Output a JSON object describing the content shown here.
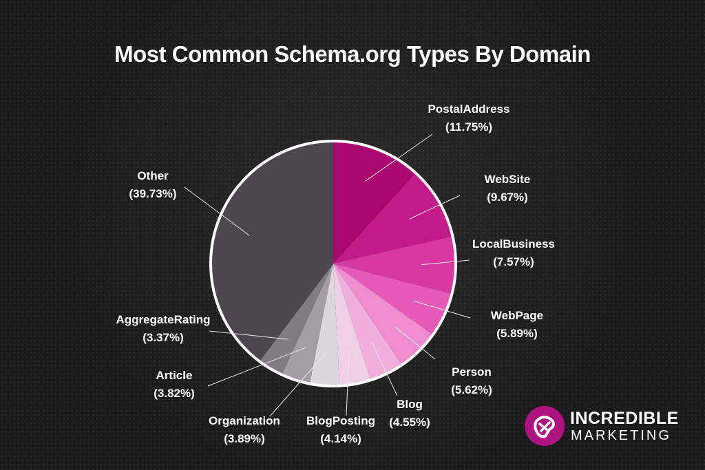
{
  "chart_data": {
    "type": "pie",
    "title": "Most Common Schema.org Types By Domain",
    "slices": [
      {
        "label": "PostalAddress",
        "value_text": "(11.75%)",
        "value": 11.75,
        "color": "#a8086e"
      },
      {
        "label": "WebSite",
        "value_text": "(9.67%)",
        "value": 9.67,
        "color": "#c21b89"
      },
      {
        "label": "LocalBusiness",
        "value_text": "(7.57%)",
        "value": 7.57,
        "color": "#d63aa2"
      },
      {
        "label": "WebPage",
        "value_text": "(5.89%)",
        "value": 5.89,
        "color": "#e65ab8"
      },
      {
        "label": "Person",
        "value_text": "(5.62%)",
        "value": 5.62,
        "color": "#ef8ccd"
      },
      {
        "label": "Blog",
        "value_text": "(4.55%)",
        "value": 4.55,
        "color": "#f2afdc"
      },
      {
        "label": "BlogPosting",
        "value_text": "(4.14%)",
        "value": 4.14,
        "color": "#efcfe5"
      },
      {
        "label": "Organization",
        "value_text": "(3.89%)",
        "value": 3.89,
        "color": "#dcd7dc"
      },
      {
        "label": "Article",
        "value_text": "(3.82%)",
        "value": 3.82,
        "color": "#a39ea3"
      },
      {
        "label": "AggregateRating",
        "value_text": "(3.37%)",
        "value": 3.37,
        "color": "#817c82"
      },
      {
        "label": "Other",
        "value_text": "(39.73%)",
        "value": 39.73,
        "color": "#4c464d"
      }
    ]
  },
  "logo": {
    "line1": "INCREDIBLE",
    "line2": "MARKETING",
    "color": "#b0127f"
  }
}
